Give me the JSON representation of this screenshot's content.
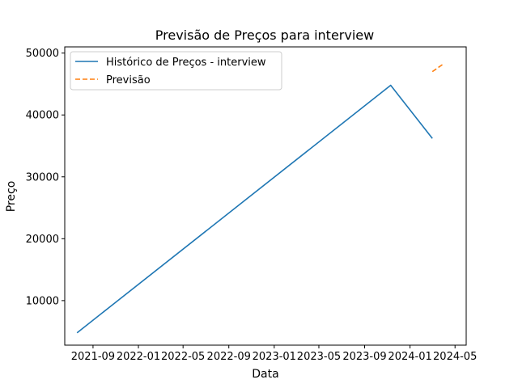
{
  "chart_data": {
    "type": "line",
    "title": "Previsão de Preços para interview",
    "xlabel": "Data",
    "ylabel": "Preço",
    "x_ticks": [
      "2021-09",
      "2022-01",
      "2022-05",
      "2022-09",
      "2023-01",
      "2023-05",
      "2023-09",
      "2024-01",
      "2024-05"
    ],
    "y_ticks": [
      10000,
      20000,
      30000,
      40000,
      50000
    ],
    "xlim": [
      "2021-06-17",
      "2024-05-31"
    ],
    "ylim": [
      2800,
      51000
    ],
    "grid": false,
    "legend_position": "top-left",
    "series": [
      {
        "name": "Histórico de Preços - interview",
        "color": "#1f77b4",
        "style": "solid",
        "points": [
          {
            "x": "2021-07-20",
            "y": 4800
          },
          {
            "x": "2023-11-10",
            "y": 44800
          },
          {
            "x": "2024-03-01",
            "y": 36200
          }
        ]
      },
      {
        "name": "Previsão",
        "color": "#ff7f0e",
        "style": "dashed",
        "points": [
          {
            "x": "2024-03-01",
            "y": 47000
          },
          {
            "x": "2024-04-01",
            "y": 48300
          }
        ]
      }
    ]
  }
}
